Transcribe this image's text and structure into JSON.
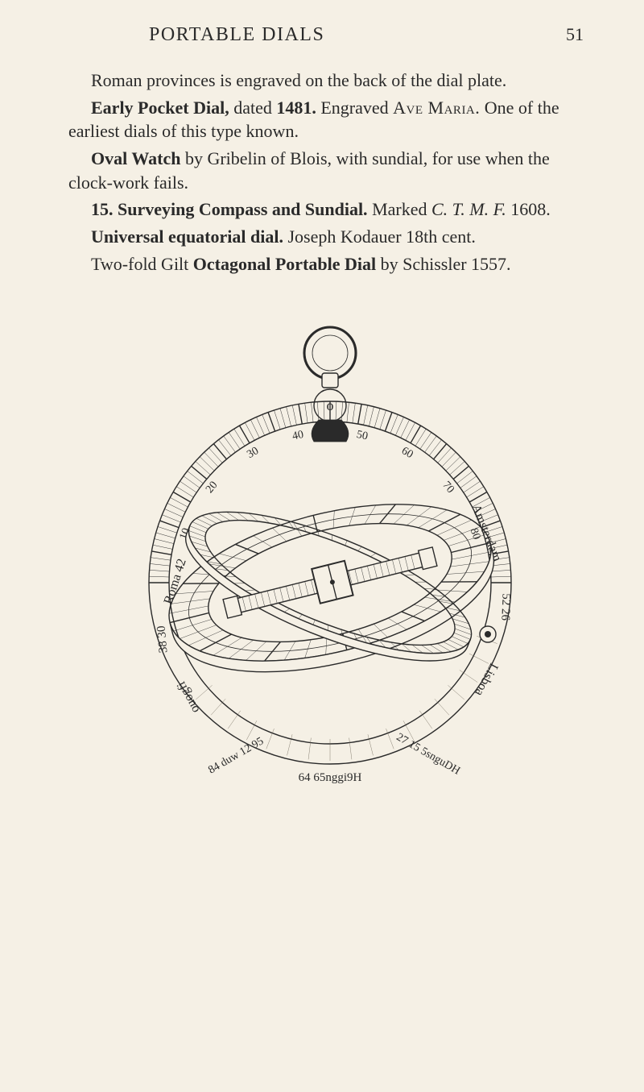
{
  "header": {
    "running_title": "PORTABLE DIALS",
    "page_number": "51"
  },
  "paragraphs": {
    "p0": {
      "t0": "Roman provinces is engraved on the back of the dial plate."
    },
    "p1": {
      "b0": "Early Pocket Dial,",
      "t0": " dated ",
      "b1": "1481.",
      "t1": " Engraved ",
      "sc0": "Ave Maria.",
      "t2": " One of the earliest dials of this type known."
    },
    "p2": {
      "b0": "Oval Watch",
      "t0": " by Gribelin of Blois, with sundial, for use when the clock-work fails."
    },
    "p3": {
      "b0": "15. Surveying Compass and Sundial.",
      "t0": " Marked ",
      "i0": "C. T. M. F.",
      "t1": " 1608."
    },
    "p4": {
      "b0": "Universal equatorial dial.",
      "t0": " Joseph Kodauer 18th cent."
    },
    "p5": {
      "t0": "Two-fold Gilt ",
      "b0": "Octagonal Portable Dial",
      "t1": " by Schissler 1557."
    }
  },
  "figure": {
    "outer_ring_labels": [
      "10",
      "20",
      "30",
      "40",
      "50",
      "60",
      "70",
      "80"
    ],
    "top_o_label": "o",
    "left_place_1": "Roma 42",
    "left_place_2": "ouogfi",
    "left_deg": "38 30",
    "right_place_1": "Amsterdam",
    "right_place_2": "52 26",
    "right_place_3": "Lisboa",
    "bottom_left": "84 duw 12 95",
    "bottom_center": "64 65nggi9H",
    "bottom_right": "27 15 5snguDH",
    "colors": {
      "paper": "#f5f0e5",
      "ink": "#2a2a2a",
      "shade": "#6b6356"
    },
    "stroke_width_main": 1.4,
    "stroke_width_fine": 0.8
  }
}
